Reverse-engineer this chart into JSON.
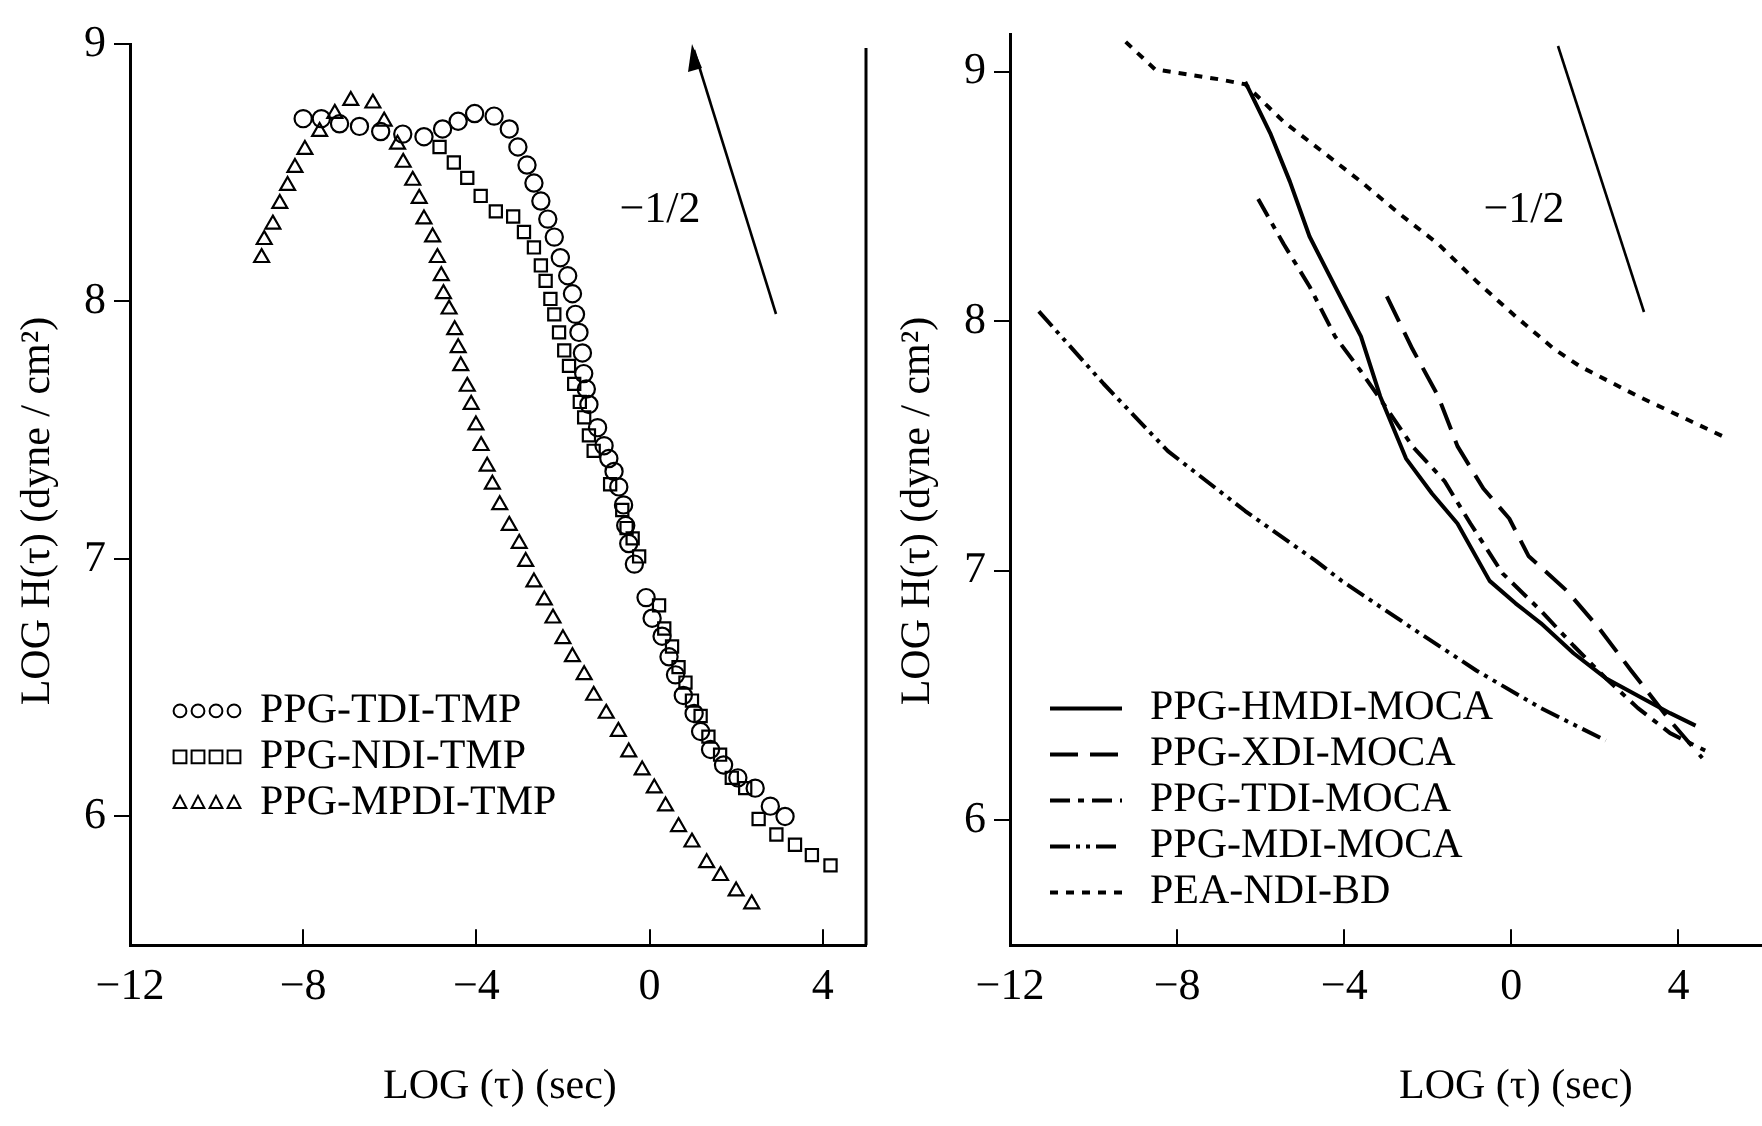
{
  "chart_data": [
    {
      "type": "scatter",
      "xlabel": "LOG (τ)  (sec)",
      "ylabel": "LOG H(τ)  (dyne / cm²)",
      "xlim": [
        -12,
        5
      ],
      "ylim": [
        5.5,
        9
      ],
      "xticks": [
        -12,
        -8,
        -4,
        0,
        4
      ],
      "yticks": [
        6,
        7,
        8,
        9
      ],
      "grid": false,
      "legend": "bottom left",
      "annotations": [
        "−1/2"
      ],
      "series": [
        {
          "name": "PPG-TDI-TMP",
          "color": "#000000",
          "marker": "circle",
          "x": [
            -8.0,
            -7.58,
            -7.16,
            -6.7,
            -6.21,
            -5.7,
            -5.21,
            -4.78,
            -4.42,
            -4.04,
            -3.59,
            -3.24,
            -3.04,
            -2.83,
            -2.67,
            -2.51,
            -2.35,
            -2.2,
            -2.06,
            -1.89,
            -1.78,
            -1.71,
            -1.63,
            -1.55,
            -1.52,
            -1.46,
            -1.4,
            -1.2,
            -1.05,
            -0.94,
            -0.82,
            -0.71,
            -0.6,
            -0.55,
            -0.48,
            -0.35,
            -0.08,
            0.06,
            0.29,
            0.45,
            0.6,
            0.78,
            1.03,
            1.18,
            1.41,
            1.71,
            2.04,
            2.44,
            2.79,
            3.13
          ],
          "values": [
            8.71,
            8.71,
            8.69,
            8.68,
            8.66,
            8.65,
            8.64,
            8.67,
            8.7,
            8.73,
            8.72,
            8.67,
            8.6,
            8.53,
            8.46,
            8.39,
            8.32,
            8.25,
            8.17,
            8.1,
            8.03,
            7.95,
            7.88,
            7.8,
            7.72,
            7.66,
            7.6,
            7.51,
            7.44,
            7.39,
            7.34,
            7.28,
            7.21,
            7.13,
            7.06,
            6.98,
            6.85,
            6.77,
            6.7,
            6.62,
            6.55,
            6.47,
            6.4,
            6.33,
            6.26,
            6.2,
            6.15,
            6.11,
            6.04,
            6.0
          ]
        },
        {
          "name": "PPG-NDI-TMP",
          "color": "#000000",
          "marker": "square",
          "x": [
            -4.85,
            -4.52,
            -4.21,
            -3.9,
            -3.55,
            -3.15,
            -2.9,
            -2.67,
            -2.51,
            -2.4,
            -2.29,
            -2.2,
            -2.09,
            -1.97,
            -1.86,
            -1.74,
            -1.61,
            -1.51,
            -1.4,
            -1.29,
            -0.91,
            -0.63,
            -0.53,
            -0.39,
            -0.24,
            0.22,
            0.34,
            0.52,
            0.67,
            0.83,
            0.98,
            1.18,
            1.36,
            1.63,
            1.9,
            2.21,
            2.52,
            2.93,
            3.36,
            3.75,
            4.18
          ],
          "values": [
            8.6,
            8.54,
            8.48,
            8.41,
            8.35,
            8.33,
            8.27,
            8.21,
            8.14,
            8.08,
            8.01,
            7.95,
            7.88,
            7.81,
            7.75,
            7.68,
            7.61,
            7.55,
            7.48,
            7.42,
            7.29,
            7.19,
            7.12,
            7.08,
            7.01,
            6.82,
            6.73,
            6.66,
            6.58,
            6.52,
            6.45,
            6.39,
            6.31,
            6.24,
            6.15,
            6.11,
            5.99,
            5.93,
            5.89,
            5.85,
            5.81
          ]
        },
        {
          "name": "PPG-MPDI-TMP",
          "color": "#000000",
          "marker": "triangle",
          "x": [
            -8.96,
            -8.9,
            -8.7,
            -8.54,
            -8.36,
            -8.19,
            -7.96,
            -7.62,
            -7.27,
            -6.9,
            -6.39,
            -6.13,
            -5.82,
            -5.69,
            -5.47,
            -5.32,
            -5.21,
            -5.01,
            -4.9,
            -4.81,
            -4.76,
            -4.63,
            -4.5,
            -4.42,
            -4.36,
            -4.21,
            -4.12,
            -4.01,
            -3.89,
            -3.75,
            -3.63,
            -3.46,
            -3.24,
            -3.01,
            -2.86,
            -2.67,
            -2.43,
            -2.23,
            -2.0,
            -1.78,
            -1.51,
            -1.29,
            -1.0,
            -0.72,
            -0.48,
            -0.17,
            0.11,
            0.37,
            0.67,
            0.98,
            1.32,
            1.64,
            2.0,
            2.36
          ],
          "values": [
            8.17,
            8.24,
            8.3,
            8.38,
            8.45,
            8.52,
            8.59,
            8.66,
            8.73,
            8.78,
            8.77,
            8.7,
            8.61,
            8.54,
            8.47,
            8.4,
            8.32,
            8.25,
            8.17,
            8.1,
            8.03,
            7.97,
            7.89,
            7.82,
            7.75,
            7.67,
            7.6,
            7.52,
            7.44,
            7.36,
            7.29,
            7.21,
            7.13,
            7.06,
            6.99,
            6.91,
            6.84,
            6.77,
            6.69,
            6.62,
            6.55,
            6.47,
            6.4,
            6.33,
            6.25,
            6.18,
            6.11,
            6.04,
            5.96,
            5.9,
            5.82,
            5.77,
            5.71,
            5.66
          ]
        }
      ]
    },
    {
      "type": "line",
      "xlabel": "LOG (τ)  (sec)",
      "ylabel": "LOG H(τ)  (dyne / cm²)",
      "xlim": [
        -12,
        6
      ],
      "ylim": [
        5.5,
        9.15
      ],
      "xticks": [
        -12,
        -8,
        -4,
        0,
        4
      ],
      "yticks": [
        6,
        7,
        8,
        9
      ],
      "grid": false,
      "legend": "bottom left",
      "annotations": [
        "−1/2"
      ],
      "series": [
        {
          "name": "PPG-HMDI-MOCA",
          "color": "#000000",
          "line_style": "solid",
          "x": [
            -6.37,
            -5.76,
            -5.3,
            -4.83,
            -4.22,
            -3.6,
            -3.14,
            -2.52,
            -1.9,
            -1.29,
            -0.52,
            0.1,
            0.71,
            1.49,
            2.26,
            3.03,
            3.8,
            4.41
          ],
          "values": [
            8.96,
            8.75,
            8.56,
            8.34,
            8.14,
            7.94,
            7.7,
            7.45,
            7.31,
            7.19,
            6.96,
            6.87,
            6.79,
            6.67,
            6.57,
            6.5,
            6.43,
            6.38
          ]
        },
        {
          "name": "PPG-XDI-MOCA",
          "color": "#000000",
          "line_style": "dashed",
          "x": [
            -2.98,
            -2.37,
            -1.75,
            -1.29,
            -0.67,
            -0.05,
            0.41,
            1.33,
            2.1,
            2.87,
            3.8,
            4.57
          ],
          "values": [
            8.1,
            7.89,
            7.7,
            7.5,
            7.33,
            7.21,
            7.06,
            6.92,
            6.77,
            6.6,
            6.4,
            6.25
          ]
        },
        {
          "name": "PPG-TDI-MOCA",
          "color": "#000000",
          "line_style": "dashdot",
          "x": [
            -6.06,
            -5.45,
            -4.83,
            -4.22,
            -3.6,
            -2.98,
            -2.37,
            -1.6,
            -0.98,
            -0.21,
            0.71,
            1.49,
            2.26,
            3.03,
            3.8,
            4.64
          ],
          "values": [
            8.49,
            8.31,
            8.14,
            7.94,
            7.8,
            7.65,
            7.5,
            7.36,
            7.19,
            6.99,
            6.84,
            6.7,
            6.57,
            6.45,
            6.35,
            6.28
          ]
        },
        {
          "name": "PPG-MDI-MOCA",
          "color": "#000000",
          "line_style": "dashdotdot",
          "x": [
            -11.31,
            -9.76,
            -8.22,
            -6.37,
            -4.68,
            -4.06,
            -2.37,
            -0.83,
            0.71,
            2.26
          ],
          "values": [
            8.04,
            7.75,
            7.48,
            7.24,
            7.04,
            6.96,
            6.77,
            6.6,
            6.45,
            6.32
          ]
        },
        {
          "name": "PEA-NDI-BD",
          "color": "#000000",
          "line_style": "dotted",
          "x": [
            -9.23,
            -8.53,
            -7.76,
            -6.99,
            -6.37,
            -5.45,
            -4.52,
            -3.6,
            -2.67,
            -1.75,
            -0.83,
            0.1,
            1.02,
            1.64,
            3.03,
            5.18
          ],
          "values": [
            9.12,
            9.01,
            8.99,
            8.97,
            8.95,
            8.8,
            8.68,
            8.56,
            8.43,
            8.31,
            8.16,
            8.02,
            7.89,
            7.82,
            7.7,
            7.53
          ]
        }
      ]
    }
  ]
}
